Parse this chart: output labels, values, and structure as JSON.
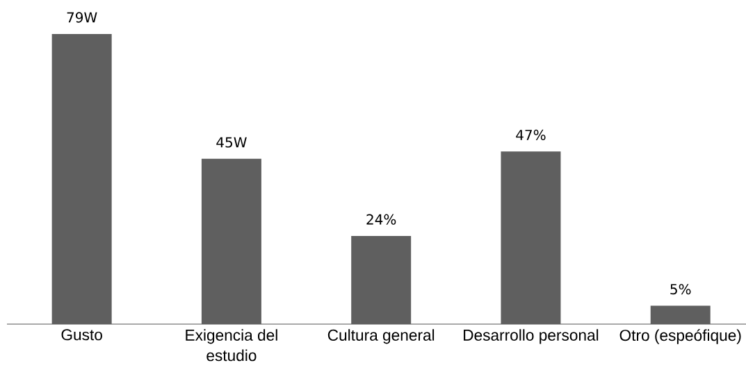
{
  "chart_data": {
    "type": "bar",
    "categories": [
      "Gusto",
      "Exigencia del estudio",
      "Cultura general",
      "Desarrollo personal",
      "Otro (espeófique)"
    ],
    "values": [
      79,
      45,
      24,
      47,
      5
    ],
    "value_labels": [
      "79W",
      "45W",
      "24%",
      "47%",
      "5%"
    ],
    "color": "#5f5f5f"
  }
}
